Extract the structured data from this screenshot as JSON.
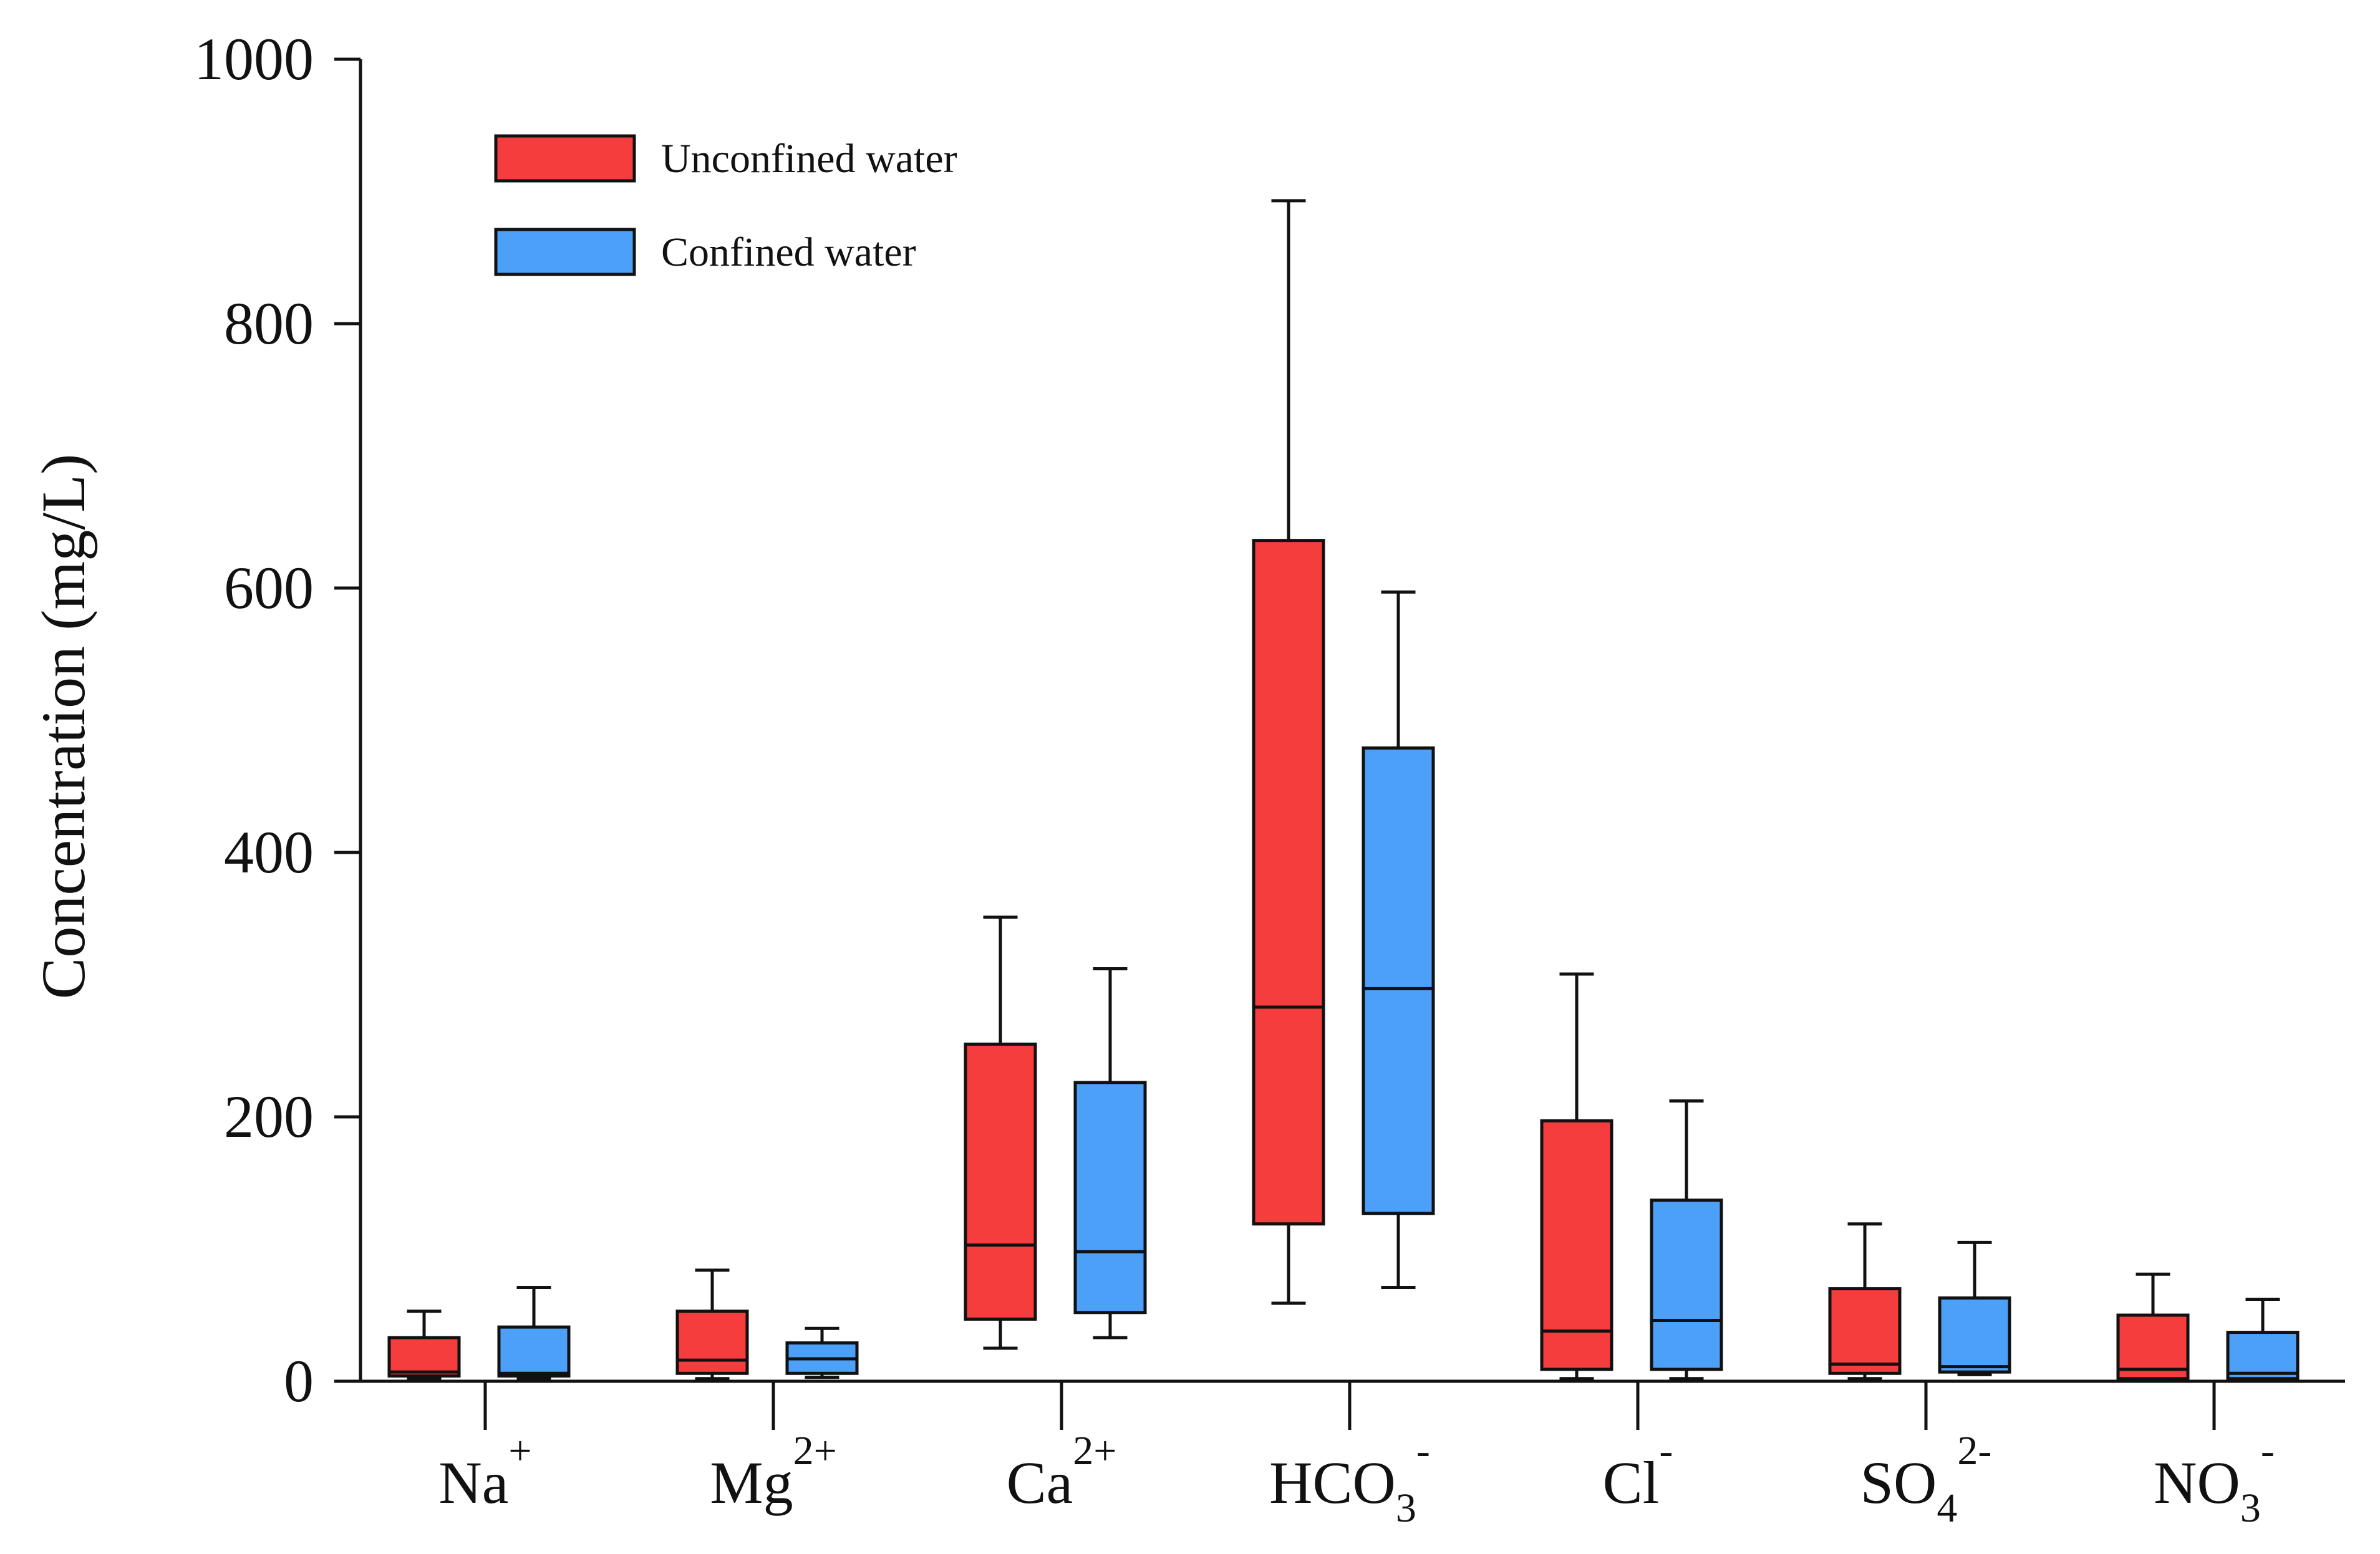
{
  "chart_data": {
    "type": "box",
    "title": "",
    "xlabel": "",
    "ylabel": "Concentration (mg/L)",
    "ylim": [
      0,
      1000
    ],
    "yticks": [
      0,
      200,
      400,
      600,
      800,
      1000
    ],
    "categories": [
      {
        "base": "Na",
        "sub": "",
        "sup": "+"
      },
      {
        "base": "Mg",
        "sub": "",
        "sup": "2+"
      },
      {
        "base": "Ca",
        "sub": "",
        "sup": "2+"
      },
      {
        "base": "HCO",
        "sub": "3",
        "sup": "-"
      },
      {
        "base": "Cl",
        "sub": "",
        "sup": "-"
      },
      {
        "base": "SO",
        "sub": "4",
        "sup": "2-"
      },
      {
        "base": "NO",
        "sub": "3",
        "sup": "-"
      }
    ],
    "legend_position": "top-left",
    "series": [
      {
        "name": "Unconfined water",
        "color": "#F53D3D",
        "boxes": [
          {
            "min": 2,
            "q1": 4,
            "median": 7,
            "q3": 33,
            "max": 53
          },
          {
            "min": 2,
            "q1": 6,
            "median": 16,
            "q3": 53,
            "max": 84
          },
          {
            "min": 25,
            "q1": 47,
            "median": 103,
            "q3": 255,
            "max": 351
          },
          {
            "min": 59,
            "q1": 119,
            "median": 283,
            "q3": 636,
            "max": 893
          },
          {
            "min": 2,
            "q1": 9,
            "median": 38,
            "q3": 197,
            "max": 308
          },
          {
            "min": 2,
            "q1": 6,
            "median": 13,
            "q3": 70,
            "max": 119
          },
          {
            "min": 1,
            "q1": 2,
            "median": 9,
            "q3": 50,
            "max": 81
          }
        ]
      },
      {
        "name": "Confined water",
        "color": "#4DA0F8",
        "boxes": [
          {
            "min": 2,
            "q1": 4,
            "median": 6,
            "q3": 41,
            "max": 71
          },
          {
            "min": 3,
            "q1": 6,
            "median": 17,
            "q3": 29,
            "max": 40
          },
          {
            "min": 33,
            "q1": 52,
            "median": 98,
            "q3": 226,
            "max": 312
          },
          {
            "min": 71,
            "q1": 127,
            "median": 297,
            "q3": 479,
            "max": 597
          },
          {
            "min": 2,
            "q1": 9,
            "median": 46,
            "q3": 137,
            "max": 212
          },
          {
            "min": 5,
            "q1": 7,
            "median": 11,
            "q3": 63,
            "max": 105
          },
          {
            "min": 1,
            "q1": 2,
            "median": 6,
            "q3": 37,
            "max": 62
          }
        ]
      }
    ]
  }
}
